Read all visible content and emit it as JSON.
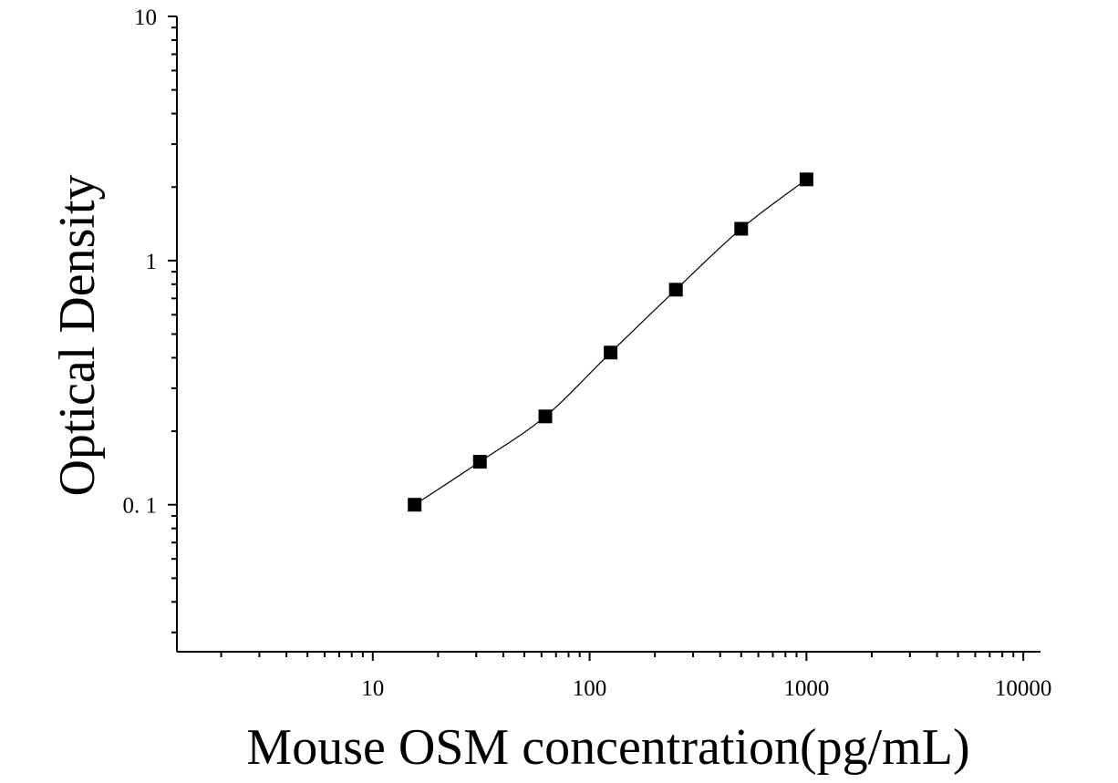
{
  "chart_data": {
    "type": "scatter",
    "title": "",
    "xlabel": "Mouse OSM concentration(pg/mL)",
    "ylabel": "Optical Density",
    "x_scale": "log",
    "y_scale": "log",
    "xlim": [
      1.25,
      12000
    ],
    "ylim": [
      0.025,
      10
    ],
    "x_ticks": [
      10,
      100,
      1000,
      10000
    ],
    "x_tick_labels": [
      "10",
      "100",
      "1000",
      "10000"
    ],
    "y_ticks": [
      0.1,
      1,
      10
    ],
    "y_tick_labels": [
      "0. 1",
      "1",
      "10"
    ],
    "grid": false,
    "series": [
      {
        "marker": "square",
        "color": "#000000",
        "fit_line": true,
        "x": [
          15.6,
          31.2,
          62.5,
          125,
          250,
          500,
          1000
        ],
        "y": [
          0.1,
          0.15,
          0.23,
          0.42,
          0.76,
          1.35,
          2.15
        ]
      }
    ]
  }
}
